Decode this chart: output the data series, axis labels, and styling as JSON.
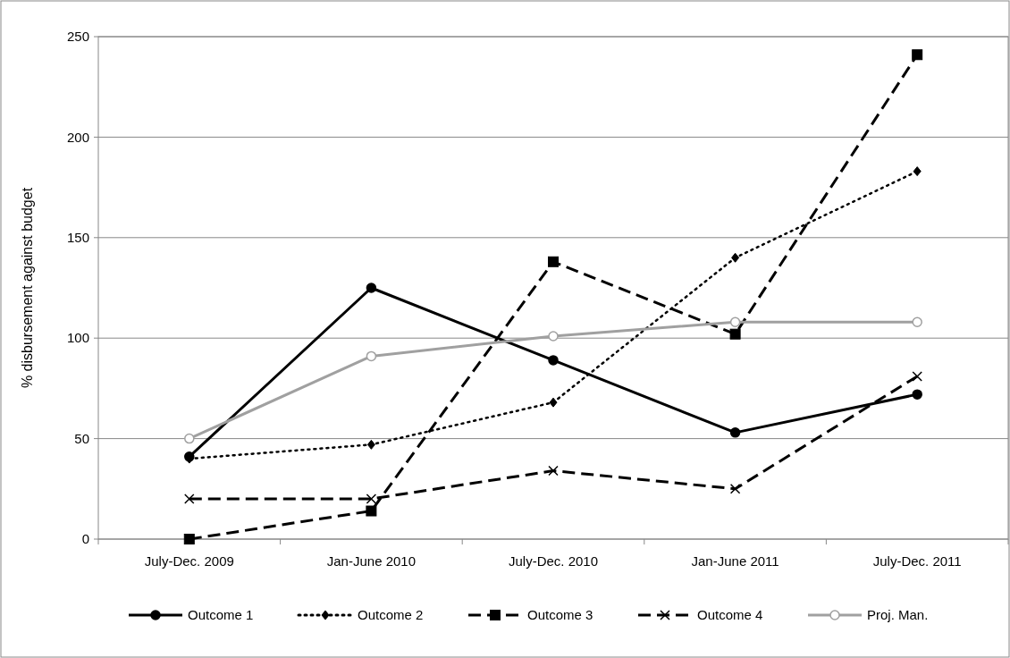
{
  "chart_data": {
    "type": "line",
    "ylabel": "% disbursement against budget",
    "categories": [
      "July-Dec. 2009",
      "Jan-June 2010",
      "July-Dec. 2010",
      "Jan-June 2011",
      "July-Dec. 2011"
    ],
    "ylim": [
      0,
      250
    ],
    "yticks": [
      0,
      50,
      100,
      150,
      200,
      250
    ],
    "grid": "y",
    "legend": "bottom",
    "series": [
      {
        "name": "Outcome 1",
        "color": "#000000",
        "marker": "circle",
        "line_style": "solid",
        "values": [
          41,
          125,
          89,
          53,
          72
        ]
      },
      {
        "name": "Outcome 2",
        "color": "#000000",
        "marker": "diamond",
        "line_style": "dotted",
        "values": [
          40,
          47,
          68,
          140,
          183
        ]
      },
      {
        "name": "Outcome 3",
        "color": "#000000",
        "marker": "square",
        "line_style": "dashed",
        "values": [
          0,
          14,
          138,
          102,
          241
        ]
      },
      {
        "name": "Outcome 4",
        "color": "#000000",
        "marker": "cross",
        "line_style": "dashed",
        "values": [
          20,
          20,
          34,
          25,
          81
        ]
      },
      {
        "name": "Proj. Man.",
        "color": "#a0a0a0",
        "marker": "circle",
        "line_style": "solid",
        "values": [
          50,
          91,
          101,
          108,
          108
        ]
      }
    ]
  }
}
